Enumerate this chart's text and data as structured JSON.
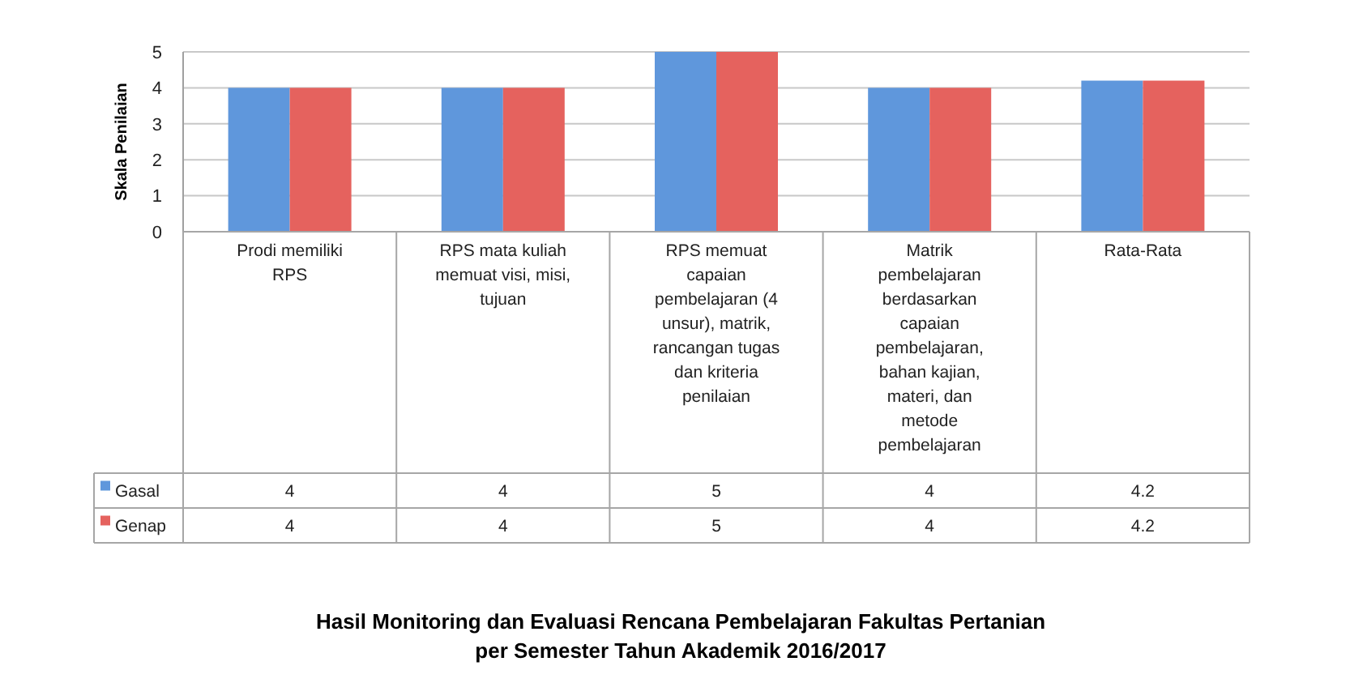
{
  "chart_data": {
    "type": "bar",
    "title": "Hasil Monitoring dan Evaluasi Rencana Pembelajaran Fakultas Pertanian per Semester Tahun Akademik 2016/2017",
    "ylabel": "Skala Penilaian",
    "categories": [
      "Prodi memiliki RPS",
      "RPS mata kuliah memuat visi, misi, tujuan",
      "RPS memuat capaian pembelajaran (4 unsur), matrik, rancangan tugas dan kriteria penilaian",
      "Matrik pembelajaran berdasarkan capaian pembelajaran, bahan kajian, materi, dan metode pembelajaran",
      "Rata-Rata"
    ],
    "series": [
      {
        "name": "Gasal",
        "color": "#5f97dc",
        "values": [
          4,
          4,
          5,
          4,
          4.2
        ]
      },
      {
        "name": "Genap",
        "color": "#e5625e",
        "values": [
          4,
          4,
          5,
          4,
          4.2
        ]
      }
    ],
    "ylim": [
      0,
      5
    ],
    "yticks": [
      0,
      1,
      2,
      3,
      4,
      5
    ],
    "grid": "y",
    "legend": "bottom left",
    "data_labels": true
  }
}
